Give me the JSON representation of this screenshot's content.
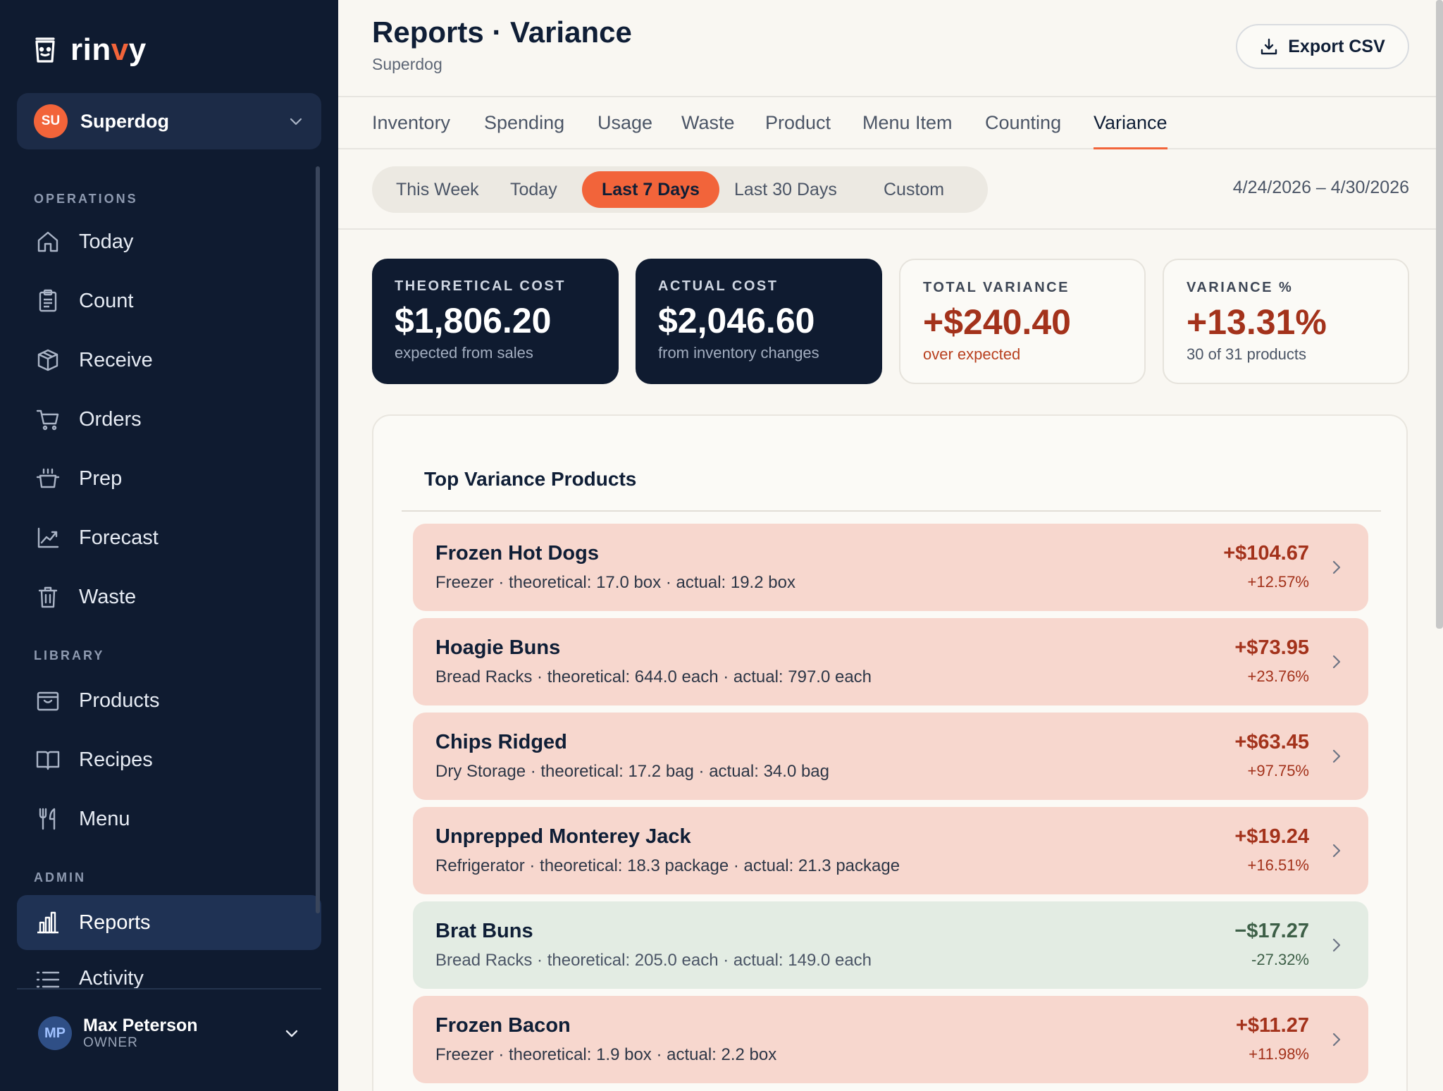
{
  "brand": {
    "name_prefix": "rin",
    "name_accent": "v",
    "name_suffix": "y",
    "accent_color": "#f2643a"
  },
  "org": {
    "initials": "SU",
    "name": "Superdog"
  },
  "sidebar": {
    "sections": {
      "operations": "OPERATIONS",
      "library": "LIBRARY",
      "admin": "ADMIN"
    },
    "items": [
      {
        "label": "Today",
        "icon": "home-icon"
      },
      {
        "label": "Count",
        "icon": "clipboard-icon"
      },
      {
        "label": "Receive",
        "icon": "box-icon"
      },
      {
        "label": "Orders",
        "icon": "cart-icon"
      },
      {
        "label": "Prep",
        "icon": "pot-icon"
      },
      {
        "label": "Forecast",
        "icon": "chart-line-icon"
      },
      {
        "label": "Waste",
        "icon": "trash-icon"
      },
      {
        "label": "Products",
        "icon": "tray-icon"
      },
      {
        "label": "Recipes",
        "icon": "book-icon"
      },
      {
        "label": "Menu",
        "icon": "utensils-icon"
      },
      {
        "label": "Reports",
        "icon": "bar-chart-icon",
        "active": true
      },
      {
        "label": "Activity",
        "icon": "list-icon"
      }
    ]
  },
  "user": {
    "initials": "MP",
    "name": "Max Peterson",
    "role": "OWNER"
  },
  "header": {
    "title": "Reports · Variance",
    "subtitle": "Superdog",
    "export_label": "Export CSV"
  },
  "tabs": [
    "Inventory",
    "Spending",
    "Usage",
    "Waste",
    "Product",
    "Menu Item",
    "Counting",
    "Variance"
  ],
  "active_tab": "Variance",
  "ranges": [
    "This Week",
    "Today",
    "Last 7 Days",
    "Last 30 Days",
    "Custom"
  ],
  "active_range": "Last 7 Days",
  "date_range": "4/24/2026 – 4/30/2026",
  "summary": [
    {
      "label": "THEORETICAL COST",
      "value": "$1,806.20",
      "sub": "expected from sales"
    },
    {
      "label": "ACTUAL COST",
      "value": "$2,046.60",
      "sub": "from inventory changes"
    },
    {
      "label": "TOTAL VARIANCE",
      "value": "+$240.40",
      "sub": "over expected"
    },
    {
      "label": "VARIANCE %",
      "value": "+13.31%",
      "sub": "30 of 31 products"
    }
  ],
  "panel": {
    "title": "Top Variance Products"
  },
  "products": [
    {
      "name": "Frozen Hot Dogs",
      "detail": "Freezer · theoretical: 17.0 box · actual: 19.2 box",
      "amount": "+$104.67",
      "pct": "+12.57%",
      "status": "over"
    },
    {
      "name": "Hoagie Buns",
      "detail": "Bread Racks · theoretical: 644.0 each · actual: 797.0 each",
      "amount": "+$73.95",
      "pct": "+23.76%",
      "status": "over"
    },
    {
      "name": "Chips Ridged",
      "detail": "Dry Storage · theoretical: 17.2 bag · actual: 34.0 bag",
      "amount": "+$63.45",
      "pct": "+97.75%",
      "status": "over"
    },
    {
      "name": "Unprepped Monterey Jack",
      "detail": "Refrigerator · theoretical: 18.3 package · actual: 21.3 package",
      "amount": "+$19.24",
      "pct": "+16.51%",
      "status": "over"
    },
    {
      "name": "Brat Buns",
      "detail": "Bread Racks · theoretical: 205.0 each · actual: 149.0 each",
      "amount": "−$17.27",
      "pct": "-27.32%",
      "status": "under"
    },
    {
      "name": "Frozen Bacon",
      "detail": "Freezer · theoretical: 1.9 box · actual: 2.2 box",
      "amount": "+$11.27",
      "pct": "+11.98%",
      "status": "over"
    }
  ]
}
